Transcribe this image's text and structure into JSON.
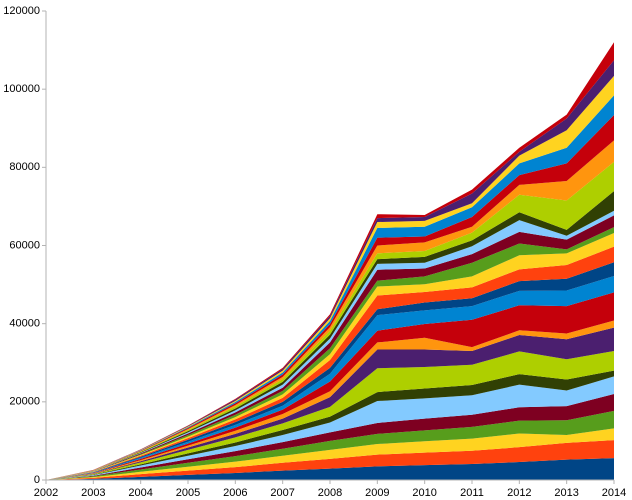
{
  "chart_data": {
    "type": "stacked_area",
    "x": [
      2002,
      2003,
      2004,
      2005,
      2006,
      2007,
      2008,
      2009,
      2010,
      2011,
      2012,
      2013,
      2014
    ],
    "xlim": [
      2002,
      2014
    ],
    "xticks": [
      2002,
      2003,
      2004,
      2005,
      2006,
      2007,
      2008,
      2009,
      2010,
      2011,
      2012,
      2013,
      2014
    ],
    "ylim": [
      0,
      120000
    ],
    "yticks": [
      0,
      20000,
      40000,
      60000,
      80000,
      100000,
      120000
    ],
    "grid": false,
    "series": [
      {
        "color": "#004586",
        "values": [
          0,
          300,
          800,
          1300,
          1800,
          2400,
          2900,
          3500,
          3800,
          4100,
          4600,
          5200,
          5600
        ]
      },
      {
        "color": "#ff420e",
        "values": [
          0,
          250,
          700,
          1100,
          1500,
          2000,
          2500,
          3000,
          3200,
          3400,
          3800,
          4300,
          4600
        ]
      },
      {
        "color": "#ffd320",
        "values": [
          0,
          200,
          600,
          1000,
          1400,
          1800,
          2300,
          2700,
          2900,
          3100,
          3500,
          2000,
          3000
        ]
      },
      {
        "color": "#579d1c",
        "values": [
          0,
          200,
          600,
          1000,
          1400,
          1800,
          2300,
          2600,
          2800,
          3000,
          3300,
          3800,
          4500
        ]
      },
      {
        "color": "#7e0021",
        "values": [
          0,
          150,
          500,
          900,
          1300,
          1700,
          2200,
          2800,
          3000,
          3100,
          3400,
          3600,
          4300
        ]
      },
      {
        "color": "#83caff",
        "values": [
          0,
          150,
          500,
          900,
          1300,
          1800,
          2500,
          5600,
          5200,
          5000,
          5800,
          4000,
          4500
        ]
      },
      {
        "color": "#314004",
        "values": [
          0,
          100,
          300,
          600,
          900,
          1300,
          1500,
          2300,
          2500,
          2600,
          2700,
          2800,
          1500
        ]
      },
      {
        "color": "#aecf00",
        "values": [
          0,
          150,
          500,
          900,
          1300,
          1700,
          2500,
          6100,
          5500,
          5200,
          5800,
          5200,
          5000
        ]
      },
      {
        "color": "#4b1f6f",
        "values": [
          0,
          100,
          300,
          600,
          900,
          1200,
          2500,
          4800,
          4500,
          3500,
          4200,
          5100,
          6000
        ]
      },
      {
        "color": "#ff950e",
        "values": [
          0,
          100,
          300,
          500,
          800,
          1200,
          1500,
          1800,
          3000,
          1000,
          1200,
          1500,
          1800
        ]
      },
      {
        "color": "#c5000b",
        "values": [
          0,
          100,
          300,
          500,
          800,
          1100,
          2500,
          3000,
          3500,
          7000,
          6400,
          7000,
          7200
        ]
      },
      {
        "color": "#0084d1",
        "values": [
          0,
          100,
          300,
          500,
          700,
          1000,
          2000,
          4000,
          3500,
          3500,
          3700,
          4000,
          4200
        ]
      },
      {
        "color": "#004586",
        "values": [
          0,
          80,
          250,
          500,
          700,
          1000,
          1500,
          1500,
          2000,
          2000,
          2500,
          3000,
          3500
        ]
      },
      {
        "color": "#ff420e",
        "values": [
          0,
          80,
          250,
          400,
          700,
          1000,
          2000,
          3500,
          2700,
          2800,
          3000,
          3500,
          4000
        ]
      },
      {
        "color": "#ffd320",
        "values": [
          0,
          70,
          200,
          400,
          600,
          900,
          1500,
          2300,
          2000,
          2800,
          3600,
          3000,
          3500
        ]
      },
      {
        "color": "#579d1c",
        "values": [
          0,
          60,
          200,
          400,
          600,
          900,
          1500,
          1500,
          2000,
          3500,
          3000,
          1000,
          1500
        ]
      },
      {
        "color": "#7e0021",
        "values": [
          0,
          60,
          200,
          400,
          600,
          800,
          1500,
          2800,
          2000,
          2200,
          3000,
          2500,
          3000
        ]
      },
      {
        "color": "#83caff",
        "values": [
          0,
          50,
          150,
          300,
          500,
          800,
          1000,
          1500,
          1500,
          2000,
          3000,
          1000,
          1200
        ]
      },
      {
        "color": "#314004",
        "values": [
          0,
          50,
          150,
          300,
          500,
          700,
          1000,
          1200,
          1500,
          1500,
          2000,
          1500,
          5000
        ]
      },
      {
        "color": "#aecf00",
        "values": [
          0,
          50,
          150,
          300,
          500,
          700,
          1000,
          1500,
          1500,
          2000,
          4500,
          7500,
          7500
        ]
      },
      {
        "color": "#ff950e",
        "values": [
          0,
          40,
          120,
          250,
          400,
          600,
          900,
          2000,
          2200,
          1500,
          2500,
          5000,
          5500
        ]
      },
      {
        "color": "#c5000b",
        "values": [
          0,
          40,
          120,
          250,
          400,
          600,
          800,
          2000,
          1500,
          2500,
          2500,
          4500,
          6500
        ]
      },
      {
        "color": "#0084d1",
        "values": [
          0,
          30,
          100,
          200,
          350,
          500,
          800,
          2500,
          2500,
          2500,
          3000,
          4000,
          5000
        ]
      },
      {
        "color": "#ffd320",
        "values": [
          0,
          30,
          100,
          200,
          300,
          500,
          700,
          1500,
          1500,
          1000,
          2000,
          4500,
          5000
        ]
      },
      {
        "color": "#4b1f6f",
        "values": [
          0,
          20,
          80,
          150,
          300,
          400,
          600,
          1000,
          1000,
          2500,
          1000,
          3000,
          4000
        ]
      },
      {
        "color": "#c5000b",
        "values": [
          0,
          20,
          60,
          100,
          200,
          300,
          400,
          1000,
          500,
          1000,
          1000,
          1000,
          4600
        ]
      }
    ]
  }
}
